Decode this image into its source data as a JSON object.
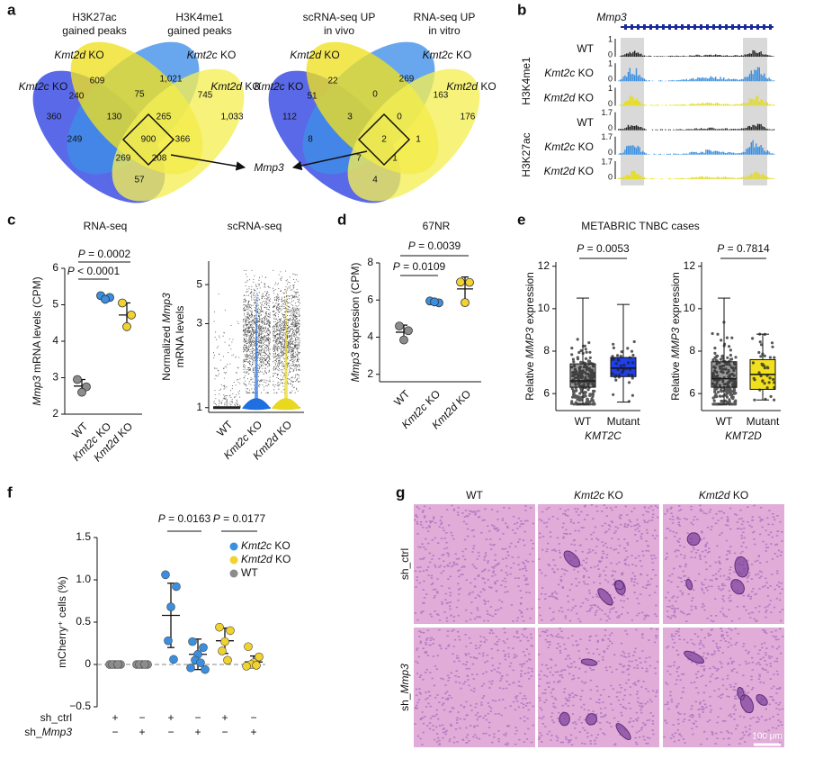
{
  "panel_labels": [
    "a",
    "b",
    "c",
    "d",
    "e",
    "f",
    "g"
  ],
  "venn": [
    {
      "titles": [
        [
          "H3K27ac",
          "gained peaks"
        ],
        [
          "H3K4me1",
          "gained peaks"
        ]
      ],
      "side_labels": [
        "Kmt2d KO",
        "Kmt2c KO",
        "Kmt2c KO",
        "Kmt2d KO"
      ],
      "counts": [
        609,
        "1,021",
        240,
        75,
        745,
        360,
        130,
        265,
        "1,033",
        249,
        900,
        366,
        269,
        208,
        57
      ]
    },
    {
      "titles": [
        [
          "scRNA-seq UP",
          "in vivo"
        ],
        [
          "RNA-seq UP",
          "in vitro"
        ]
      ],
      "side_labels": [
        "Kmt2d KO",
        "Kmt2c KO",
        "Kmt2c KO",
        "Kmt2d KO"
      ],
      "counts": [
        22,
        269,
        51,
        0,
        163,
        112,
        3,
        0,
        176,
        8,
        2,
        1,
        7,
        1,
        4
      ]
    }
  ],
  "venn_target": "Mmp3",
  "tracks": {
    "gene": "Mmp3",
    "groups": [
      "H3K4me1",
      "H3K27ac"
    ],
    "rows": [
      {
        "label": "WT",
        "ymax": 1,
        "ymin": 0,
        "color": "#222222"
      },
      {
        "label": "Kmt2c KO",
        "ymax": 1,
        "ymin": 0,
        "color": "#3a8fe0"
      },
      {
        "label": "Kmt2d KO",
        "ymax": 1,
        "ymin": 0,
        "color": "#e3dc1c"
      },
      {
        "label": "WT",
        "ymax": 1.7,
        "ymin": 0,
        "color": "#222222"
      },
      {
        "label": "Kmt2c KO",
        "ymax": 1.7,
        "ymin": 0,
        "color": "#3a8fe0"
      },
      {
        "label": "Kmt2d KO",
        "ymax": 1.7,
        "ymin": 0,
        "color": "#e3dc1c"
      }
    ]
  },
  "chart_data": [
    {
      "type": "dot",
      "title": "RNA-seq",
      "ylabel": "Mmp3 mRNA levels (CPM)",
      "categories": [
        "WT",
        "Kmt2c KO",
        "Kmt2d KO"
      ],
      "colors": [
        "#8c8c8c",
        "#3a8fe0",
        "#f2d22e"
      ],
      "points": [
        [
          2.95,
          2.75,
          2.6
        ],
        [
          5.25,
          5.2,
          5.15
        ],
        [
          5.05,
          4.72,
          4.4
        ]
      ],
      "means": [
        2.77,
        5.2,
        4.72
      ],
      "sds": [
        0.18,
        0.05,
        0.33
      ],
      "ylim": [
        2,
        6
      ],
      "yticks": [
        2,
        3,
        4,
        5,
        6
      ],
      "annotations": [
        "P = 0.0002",
        "P < 0.0001"
      ]
    },
    {
      "type": "violin",
      "title": "scRNA-seq",
      "ylabel": [
        "Normalized Mmp3",
        "mRNA levels"
      ],
      "categories": [
        "WT",
        "Kmt2c KO",
        "Kmt2d KO"
      ],
      "colors": [
        "#222222",
        "#1f6fe0",
        "#e8d820"
      ],
      "ylim": [
        0.94,
        6.8
      ],
      "yticks": [
        1,
        3,
        5
      ],
      "log": true
    },
    {
      "type": "dot",
      "title": "67NR",
      "ylabel": "Mmp3 expression (CPM)",
      "categories": [
        "WT",
        "Kmt2c KO",
        "Kmt2d KO"
      ],
      "colors": [
        "#8c8c8c",
        "#3a8fe0",
        "#f2d22e"
      ],
      "points": [
        [
          4.6,
          4.35,
          3.85
        ],
        [
          5.95,
          5.85,
          5.9
        ],
        [
          6.97,
          6.95,
          5.86
        ]
      ],
      "means": [
        4.27,
        5.9,
        6.6
      ],
      "sds": [
        0.38,
        0.05,
        0.64
      ],
      "ylim": [
        1.6,
        8
      ],
      "yticks": [
        2,
        4,
        6,
        8
      ],
      "annotations": [
        "P = 0.0039",
        "P = 0.0109"
      ]
    },
    {
      "type": "box",
      "title": "METABRIC TNBC cases",
      "ylabel": "Relative MMP3 expression",
      "xlabel": "KMT2C",
      "categories": [
        "WT",
        "Mutant"
      ],
      "colors": [
        "#9a9a9a",
        "#1f3fe8"
      ],
      "boxes": [
        {
          "min": 5.5,
          "q1": 6.3,
          "median": 6.6,
          "q3": 7.4,
          "max": 10.5
        },
        {
          "min": 5.6,
          "q1": 6.8,
          "median": 7.2,
          "q3": 7.7,
          "max": 10.2
        }
      ],
      "ylim": [
        5.2,
        12.2
      ],
      "yticks": [
        6,
        8,
        10,
        12
      ],
      "annotations": [
        "P = 0.0053"
      ]
    },
    {
      "type": "box",
      "ylabel": "Relative MMP3 expression",
      "xlabel": "KMT2D",
      "categories": [
        "WT",
        "Mutant"
      ],
      "colors": [
        "#9a9a9a",
        "#f0e020"
      ],
      "boxes": [
        {
          "min": 5.5,
          "q1": 6.3,
          "median": 6.7,
          "q3": 7.5,
          "max": 10.5
        },
        {
          "min": 5.7,
          "q1": 6.2,
          "median": 6.9,
          "q3": 7.6,
          "max": 8.8
        }
      ],
      "ylim": [
        5.2,
        12.2
      ],
      "yticks": [
        6,
        8,
        10,
        12
      ],
      "annotations": [
        "P = 0.7814"
      ]
    },
    {
      "type": "groups",
      "ylabel": "mCherry⁺ cells (%)",
      "ylim": [
        -0.5,
        1.5
      ],
      "yticks": [
        {
          "value": -0.5,
          "label": "−0.5"
        },
        0,
        0.5,
        {
          "value": 1,
          "label": "1.0"
        },
        1.5
      ],
      "legend": [
        {
          "name": "Kmt2c KO",
          "color": "#3a8fe0"
        },
        {
          "name": "Kmt2d KO",
          "color": "#f2d22e"
        },
        {
          "name": "WT",
          "color": "#8c8c8c"
        }
      ],
      "groups": [
        {
          "color": "#8c8c8c",
          "values": [
            0,
            0,
            0,
            0,
            0
          ],
          "mean": 0,
          "sd": 0
        },
        {
          "color": "#8c8c8c",
          "values": [
            0,
            0,
            0,
            0,
            0
          ],
          "mean": 0,
          "sd": 0
        },
        {
          "color": "#3a8fe0",
          "values": [
            1.06,
            0.92,
            0.68,
            0.28,
            0.06
          ],
          "mean": 0.58,
          "sd": 0.38
        },
        {
          "color": "#3a8fe0",
          "values": [
            0.27,
            0.2,
            0.12,
            0.05,
            0.02,
            -0.04,
            -0.06
          ],
          "mean": 0.12,
          "sd": 0.18
        },
        {
          "color": "#f2d22e",
          "values": [
            0.44,
            0.4,
            0.27,
            0.16,
            0.05
          ],
          "mean": 0.28,
          "sd": 0.15
        },
        {
          "color": "#f2d22e",
          "values": [
            0.21,
            0.09,
            0.02,
            0,
            -0.01,
            -0.02
          ],
          "mean": 0.03,
          "sd": 0.07
        }
      ],
      "annotations": [
        "P = 0.0163",
        "P = 0.0177"
      ],
      "rows": [
        {
          "name": "sh_ctrl",
          "marks": [
            "+",
            "−",
            "+",
            "−",
            "+",
            "−"
          ]
        },
        {
          "name": "sh_Mmp3",
          "marks": [
            "−",
            "+",
            "−",
            "+",
            "−",
            "+"
          ]
        }
      ]
    }
  ],
  "histology": {
    "columns": [
      "WT",
      "Kmt2c KO",
      "Kmt2d KO"
    ],
    "rows": [
      "sh_ctrl",
      "sh_Mmp3"
    ],
    "scale_bar": "100 μm"
  }
}
